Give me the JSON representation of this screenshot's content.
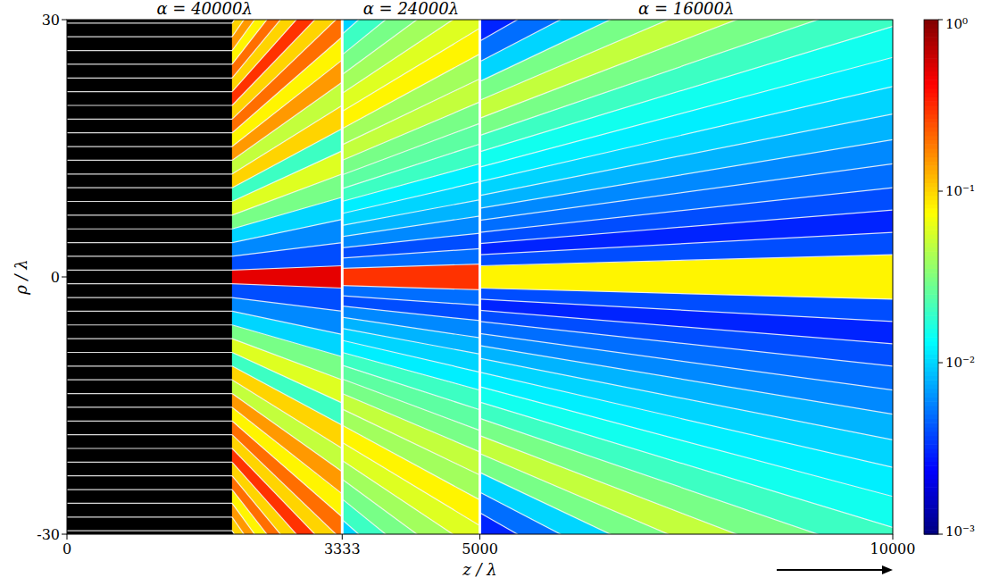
{
  "chart_data": {
    "type": "heatmap",
    "x_label": "z / λ",
    "y_label": "ρ / λ",
    "xlim": [
      0,
      10000
    ],
    "xticks": [
      0,
      3333,
      5000,
      10000
    ],
    "ylim": [
      -30,
      30
    ],
    "yticks": [
      -30,
      0,
      30
    ],
    "colorbar": {
      "log": true,
      "lim": [
        0.001,
        1
      ],
      "ticks": [
        {
          "value": 1,
          "label": "10⁰"
        },
        {
          "value": 0.1,
          "label": "10⁻¹"
        },
        {
          "value": 0.01,
          "label": "10⁻²"
        },
        {
          "value": 0.001,
          "label": "10⁻³"
        }
      ]
    },
    "panels": [
      {
        "title": "α = 40000λ",
        "segments": [
          {
            "z": [
              0,
              2000
            ],
            "rho_start": [
              -29.6,
              -28,
              -26.4,
              -24.8,
              -23.2,
              -21.6,
              -20,
              -18.4,
              -16.8,
              -15.2,
              -13.6,
              -12,
              -10.4,
              -8.8,
              -7.2,
              -5.6,
              -4,
              -2.4,
              -0.8,
              0.8,
              2.4,
              4,
              5.6,
              7.2,
              8.8,
              10.4,
              12,
              13.6,
              15.2,
              16.8,
              18.4,
              20,
              21.6,
              23.2,
              24.8,
              26.4,
              28,
              29.6
            ],
            "rho_end": [
              -29.6,
              -28,
              -26.4,
              -24.8,
              -23.2,
              -21.6,
              -20,
              -18.4,
              -16.8,
              -15.2,
              -13.6,
              -12,
              -10.4,
              -8.8,
              -7.2,
              -5.6,
              -4,
              -2.4,
              -0.8,
              0.8,
              2.4,
              4,
              5.6,
              7.2,
              8.8,
              10.4,
              12,
              13.6,
              15.2,
              16.8,
              18.4,
              20,
              21.6,
              23.2,
              24.8,
              26.4,
              28,
              29.6
            ]
          },
          {
            "z": [
              2000,
              3333
            ],
            "rho_start": [
              -29.6,
              -28,
              -26.4,
              -24.8,
              -23.2,
              -21.6,
              -20,
              -18.4,
              -16.8,
              -15.2,
              -13.6,
              -12,
              -10.4,
              -8.8,
              -7.2,
              -5.6,
              -4,
              -2.4,
              -0.8,
              0.8,
              2.4,
              4,
              5.6,
              7.2,
              8.8,
              10.4,
              12,
              13.6,
              15.2,
              16.8,
              18.4,
              20,
              21.6,
              23.2,
              24.8,
              26.4,
              28,
              29.6
            ],
            "rho_end": [
              -49.3,
              -46.7,
              -44,
              -41.3,
              -38.7,
              -36,
              -33.3,
              -30.7,
              -28,
              -25.3,
              -22.7,
              -20,
              -17.3,
              -14.7,
              -12,
              -9.3,
              -6.7,
              -4,
              -1.3,
              1.3,
              4,
              6.7,
              9.3,
              12,
              14.7,
              17.3,
              20,
              22.7,
              25.3,
              28,
              30.7,
              33.3,
              36,
              38.7,
              41.3,
              44,
              46.7,
              49.3
            ],
            "intensity": [
              0.1,
              0.15,
              0.08,
              0.2,
              0.1,
              0.3,
              0.1,
              0.2,
              0.08,
              0.15,
              0.05,
              0.1,
              0.02,
              0.06,
              0.03,
              0.01,
              0.006,
              0.004,
              0.5,
              0.004,
              0.006,
              0.01,
              0.03,
              0.06,
              0.02,
              0.1,
              0.05,
              0.15,
              0.08,
              0.2,
              0.1,
              0.3,
              0.1,
              0.2,
              0.08,
              0.15,
              0.1
            ]
          }
        ]
      },
      {
        "title": "α = 24000λ",
        "segments": [
          {
            "z": [
              3333,
              5000
            ],
            "rho_start": [
              -30.8,
              -28.3,
              -25.9,
              -23.6,
              -21.4,
              -19.3,
              -17.3,
              -15.4,
              -13.6,
              -11.9,
              -10.3,
              -8.8,
              -7.4,
              -6,
              -4.7,
              -3.4,
              -2.2,
              -1,
              1,
              2.2,
              3.4,
              4.7,
              6,
              7.4,
              8.8,
              10.3,
              11.9,
              13.6,
              15.4,
              17.3,
              19.3,
              21.4,
              23.6,
              25.9,
              28.3,
              30.8
            ],
            "rho_end": [
              -46.2,
              -42.5,
              -38.9,
              -35.4,
              -32.1,
              -29,
              -26,
              -23.1,
              -20.4,
              -17.9,
              -15.5,
              -13.2,
              -11.1,
              -9,
              -7.1,
              -5.1,
              -3.3,
              -1.5,
              1.5,
              3.3,
              5.1,
              7.1,
              9,
              11.1,
              13.2,
              15.5,
              17.9,
              20.4,
              23.1,
              26,
              29,
              32.1,
              35.4,
              38.9,
              42.5,
              46.2
            ],
            "intensity": [
              0.01,
              0.02,
              0.03,
              0.04,
              0.06,
              0.08,
              0.04,
              0.05,
              0.03,
              0.025,
              0.02,
              0.012,
              0.01,
              0.008,
              0.006,
              0.004,
              0.005,
              0.3,
              0.005,
              0.004,
              0.006,
              0.008,
              0.01,
              0.012,
              0.02,
              0.025,
              0.03,
              0.05,
              0.04,
              0.08,
              0.06,
              0.04,
              0.03,
              0.02,
              0.01
            ]
          }
        ]
      },
      {
        "title": "α = 16000λ",
        "segments": [
          {
            "z": [
              5000,
              10000
            ],
            "rho_start": [
              -30,
              -27.5,
              -25.1,
              -22.8,
              -20.6,
              -18.5,
              -16.5,
              -14.6,
              -12.8,
              -11.1,
              -9.5,
              -8,
              -6.6,
              -5.2,
              -3.9,
              -2.6,
              -1.3,
              1.3,
              2.6,
              3.9,
              5.2,
              6.6,
              8,
              9.5,
              11.1,
              12.8,
              14.6,
              16.5,
              18.5,
              20.6,
              22.8,
              25.1,
              27.5,
              30
            ],
            "rho_end": [
              -60,
              -55,
              -50.2,
              -45.6,
              -41.2,
              -37,
              -33,
              -29.2,
              -25.6,
              -22.2,
              -19,
              -16,
              -13.2,
              -10.4,
              -7.8,
              -5.2,
              -2.6,
              2.6,
              5.2,
              7.8,
              10.4,
              13.2,
              16,
              19,
              22.2,
              25.6,
              29.2,
              33,
              37,
              41.2,
              45.6,
              50.2,
              55,
              60
            ],
            "intensity": [
              0.003,
              0.005,
              0.01,
              0.03,
              0.05,
              0.03,
              0.02,
              0.015,
              0.012,
              0.01,
              0.008,
              0.006,
              0.005,
              0.004,
              0.003,
              0.004,
              0.08,
              0.004,
              0.003,
              0.004,
              0.005,
              0.006,
              0.008,
              0.01,
              0.012,
              0.015,
              0.02,
              0.03,
              0.05,
              0.03,
              0.01,
              0.005,
              0.003
            ]
          }
        ]
      }
    ]
  }
}
